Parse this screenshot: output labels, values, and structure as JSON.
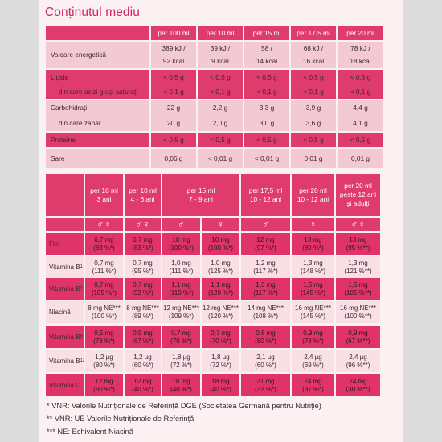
{
  "title": "Conținutul mediu",
  "table1": {
    "headers": [
      "per 100 ml",
      "per 10 ml",
      "per 15 ml",
      "per 17,5 ml",
      "per 20 ml"
    ],
    "rows": [
      {
        "label": "Valoare energetică",
        "sublabel": "",
        "values": [
          "389 kJ /",
          "39 kJ /",
          "58 /",
          "68 kJ /",
          "78 kJ /"
        ],
        "values2": [
          "92 kcal",
          "9 kcal",
          "14 kcal",
          "16 kcal",
          "18 kcal"
        ]
      },
      {
        "label": "Lipide",
        "sublabel": "din care acizi grași saturați",
        "values": [
          "< 0,5 g",
          "< 0,5 g",
          "< 0,5 g",
          "< 0,5 g",
          "< 0,5 g"
        ],
        "values2": [
          "< 0,1 g",
          "< 0,1 g",
          "< 0,1 g",
          "< 0,1 g",
          "< 0,1 g"
        ]
      },
      {
        "label": "Carbohidrați",
        "sublabel": "din care zahăr",
        "values": [
          "22 g",
          "2,2 g",
          "3,3 g",
          "3,9 g",
          "4,4 g"
        ],
        "values2": [
          "20 g",
          "2,0 g",
          "3,0 g",
          "3,6 g",
          "4,1 g"
        ]
      },
      {
        "label": "Proteine",
        "sublabel": "",
        "values": [
          "< 0,5 g",
          "< 0,5 g",
          "< 0,5 g",
          "< 0,5 g",
          "< 0,5 g"
        ],
        "values2": []
      },
      {
        "label": "Sare",
        "sublabel": "",
        "values": [
          "0,06 g",
          "< 0,01 g",
          "< 0,01 g",
          "0,01 g",
          "0,01 g"
        ],
        "values2": []
      }
    ]
  },
  "table2": {
    "headers": [
      {
        "l1": "per 10 ml",
        "l2": "3 ani",
        "l3": ""
      },
      {
        "l1": "per 10 ml",
        "l2": "4 - 6 ani",
        "l3": ""
      },
      {
        "l1": "per 15 ml",
        "l2": "7 - 9 ani",
        "l3": ""
      },
      {
        "l1": "per 17,5 ml",
        "l2": "10 - 12 ani",
        "l3": ""
      },
      {
        "l1": "per 20 ml",
        "l2": "10 - 12 ani",
        "l3": ""
      },
      {
        "l1": "per 20 ml",
        "l2": "peste 12 ani",
        "l3": "și adulți"
      }
    ],
    "genders": [
      "♂♀",
      "♂♀",
      "♂",
      "♀",
      "♂",
      "♀",
      "♂♀"
    ],
    "rows": [
      {
        "label": "Fier",
        "sub": "",
        "values": [
          [
            "6,7 mg",
            "(83 %*)"
          ],
          [
            "6,7 mg",
            "(83 %*)"
          ],
          [
            "10 mg",
            "(100 %*)"
          ],
          [
            "10 mg",
            "(100 %*)"
          ],
          [
            "12 mg",
            "(97 %*)"
          ],
          [
            "13 mg",
            "(89 %*)"
          ],
          [
            "13 mg",
            "(95 %**)"
          ]
        ]
      },
      {
        "label": "Vitamina B",
        "sub": "1",
        "values": [
          [
            "0,7 mg",
            "(111 %*)"
          ],
          [
            "0,7 mg",
            "(95 %*)"
          ],
          [
            "1,0 mg",
            "(111 %*)"
          ],
          [
            "1,0 mg",
            "(125 %*)"
          ],
          [
            "1,2 mg",
            "(117 %*)"
          ],
          [
            "1,3 mg",
            "(148 %*)"
          ],
          [
            "1,3 mg",
            "(121 %**)"
          ]
        ]
      },
      {
        "label": "Vitamina B",
        "sub": "2",
        "values": [
          [
            "0,7 mg",
            "(105 %*)"
          ],
          [
            "0,7 mg",
            "(92 %*)"
          ],
          [
            "1,1 mg",
            "(110 %*)"
          ],
          [
            "1,1 mg",
            "(120 %*)"
          ],
          [
            "1,3 mg",
            "(117 %*)"
          ],
          [
            "1,5 mg",
            "(145 %*)"
          ],
          [
            "1,5 mg",
            "(105 %**)"
          ]
        ]
      },
      {
        "label": "Niacină",
        "sub": "",
        "values": [
          [
            "8 mg NE***",
            "(100 %*)"
          ],
          [
            "8 mg NE***",
            "(89 %*)"
          ],
          [
            "12 mg NE***",
            "(109 %*)"
          ],
          [
            "12 mg NE***",
            "(120 %*)"
          ],
          [
            "14 mg NE***",
            "(108 %*)"
          ],
          [
            "16 mg NE***",
            "(145 %*)"
          ],
          [
            "16 mg NE***",
            "(100 %**)"
          ]
        ]
      },
      {
        "label": "Vitamina B",
        "sub": "6",
        "values": [
          [
            "0,5 mg",
            "(78 %*)"
          ],
          [
            "0,5 mg",
            "(67 %*)"
          ],
          [
            "0,7 mg",
            "(70 %*)"
          ],
          [
            "0,7 mg",
            "(70 %*)"
          ],
          [
            "0,8 mg",
            "(80 %*)"
          ],
          [
            "0,9 mg",
            "(78 %*)"
          ],
          [
            "0,9 mg",
            "(67 %**)"
          ]
        ]
      },
      {
        "label": "Vitamina B",
        "sub": "12",
        "values": [
          [
            "1,2 µg",
            "(80 %*)"
          ],
          [
            "1,2 µg",
            "(60 %*)"
          ],
          [
            "1,8 µg",
            "(72 %*)"
          ],
          [
            "1,8 µg",
            "(72 %*)"
          ],
          [
            "2,1 µg",
            "(60 %*)"
          ],
          [
            "2,4 µg",
            "(69 %*)"
          ],
          [
            "2,4 µg",
            "(96 %**)"
          ]
        ]
      },
      {
        "label": "Vitamina C",
        "sub": "",
        "values": [
          [
            "12 mg",
            "(60 %*)"
          ],
          [
            "12 mg",
            "(40 %*)"
          ],
          [
            "18 mg",
            "(40 %*)"
          ],
          [
            "18 mg",
            "(40 %*)"
          ],
          [
            "21 mg",
            "(32 %*)"
          ],
          [
            "24 mg",
            "(37 %*)"
          ],
          [
            "24 mg",
            "(30 %**)"
          ]
        ]
      }
    ]
  },
  "footnotes": [
    "* VNR: Valorile Nutriționale de Referință DGE (Societatea Germană pentru Nutriție)",
    "** VNR: UE Valorile Nutriționale de Referință",
    "*** NE: Echivalent Niacină"
  ]
}
